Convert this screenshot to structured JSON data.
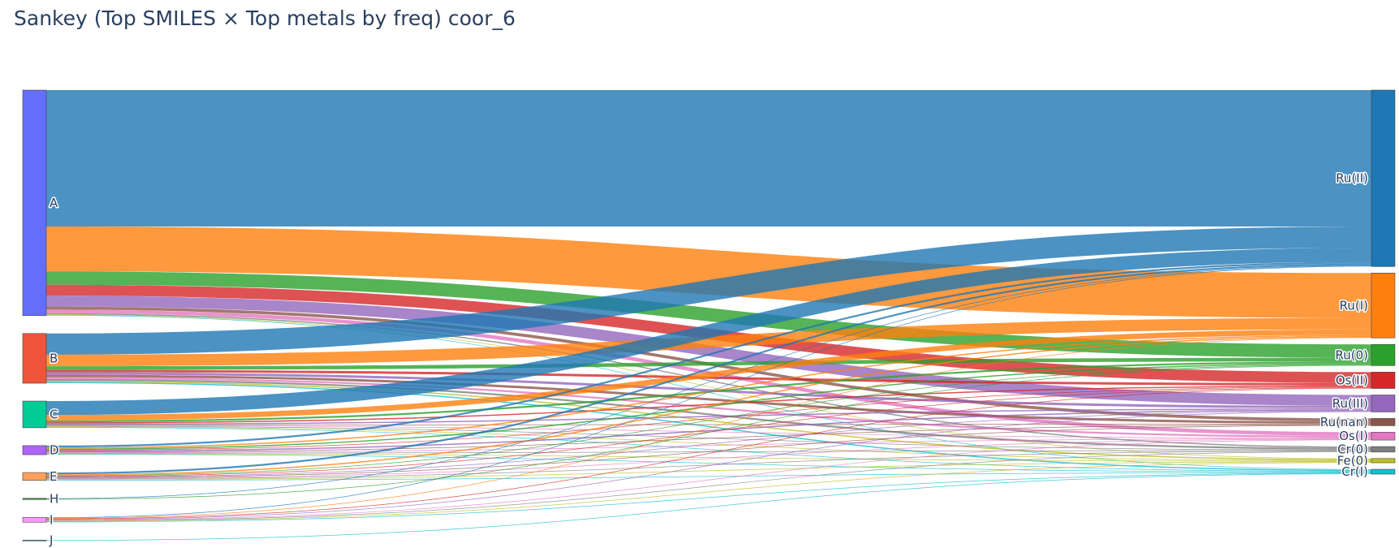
{
  "chart_data": {
    "type": "sankey",
    "title": "Sankey (Top SMILES × Top metals by freq) coor_6",
    "sources": [
      {
        "label": "A",
        "color": "#636efa"
      },
      {
        "label": "B",
        "color": "#EF553B"
      },
      {
        "label": "C",
        "color": "#00cc96"
      },
      {
        "label": "D",
        "color": "#ab63fa"
      },
      {
        "label": "E",
        "color": "#FFA15A"
      },
      {
        "label": "H",
        "color": "#2ca02c"
      },
      {
        "label": "I",
        "color": "#FF97FF"
      },
      {
        "label": "J",
        "color": "#17becf"
      }
    ],
    "targets": [
      {
        "label": "Ru(II)",
        "color": "#1f77b4"
      },
      {
        "label": "Ru(I)",
        "color": "#ff7f0e"
      },
      {
        "label": "Ru(0)",
        "color": "#2ca02c"
      },
      {
        "label": "Os(II)",
        "color": "#d62728"
      },
      {
        "label": "Ru(III)",
        "color": "#9467bd"
      },
      {
        "label": "Ru(nan)",
        "color": "#8c564b"
      },
      {
        "label": "Os(I)",
        "color": "#e377c2"
      },
      {
        "label": "Cr(0)",
        "color": "#7f7f7f"
      },
      {
        "label": "Fe(0)",
        "color": "#bcbd22"
      },
      {
        "label": "Cr(I)",
        "color": "#17becf"
      }
    ],
    "links": [
      {
        "source": "A",
        "target": "Ru(II)",
        "value": 450
      },
      {
        "source": "A",
        "target": "Ru(I)",
        "value": 148
      },
      {
        "source": "A",
        "target": "Ru(0)",
        "value": 44
      },
      {
        "source": "A",
        "target": "Os(II)",
        "value": 36
      },
      {
        "source": "A",
        "target": "Ru(III)",
        "value": 36
      },
      {
        "source": "A",
        "target": "Ru(nan)",
        "value": 10
      },
      {
        "source": "A",
        "target": "Os(I)",
        "value": 12
      },
      {
        "source": "A",
        "target": "Cr(0)",
        "value": 4
      },
      {
        "source": "A",
        "target": "Fe(0)",
        "value": 2
      },
      {
        "source": "A",
        "target": "Cr(I)",
        "value": 2
      },
      {
        "source": "B",
        "target": "Ru(II)",
        "value": 70
      },
      {
        "source": "B",
        "target": "Ru(I)",
        "value": 38
      },
      {
        "source": "B",
        "target": "Ru(0)",
        "value": 12
      },
      {
        "source": "B",
        "target": "Os(II)",
        "value": 8
      },
      {
        "source": "B",
        "target": "Ru(III)",
        "value": 8
      },
      {
        "source": "B",
        "target": "Ru(nan)",
        "value": 8
      },
      {
        "source": "B",
        "target": "Os(I)",
        "value": 6
      },
      {
        "source": "B",
        "target": "Cr(0)",
        "value": 6
      },
      {
        "source": "B",
        "target": "Fe(0)",
        "value": 4
      },
      {
        "source": "B",
        "target": "Cr(I)",
        "value": 4
      },
      {
        "source": "C",
        "target": "Ru(II)",
        "value": 46
      },
      {
        "source": "C",
        "target": "Ru(I)",
        "value": 18
      },
      {
        "source": "C",
        "target": "Ru(0)",
        "value": 6
      },
      {
        "source": "C",
        "target": "Os(II)",
        "value": 4
      },
      {
        "source": "C",
        "target": "Ru(III)",
        "value": 4
      },
      {
        "source": "C",
        "target": "Ru(nan)",
        "value": 2
      },
      {
        "source": "C",
        "target": "Os(I)",
        "value": 2
      },
      {
        "source": "C",
        "target": "Cr(0)",
        "value": 2
      },
      {
        "source": "C",
        "target": "Fe(0)",
        "value": 2
      },
      {
        "source": "C",
        "target": "Cr(I)",
        "value": 2
      },
      {
        "source": "D",
        "target": "Ru(II)",
        "value": 6
      },
      {
        "source": "D",
        "target": "Ru(I)",
        "value": 4
      },
      {
        "source": "D",
        "target": "Ru(0)",
        "value": 4
      },
      {
        "source": "D",
        "target": "Os(II)",
        "value": 2
      },
      {
        "source": "D",
        "target": "Ru(III)",
        "value": 4
      },
      {
        "source": "D",
        "target": "Ru(nan)",
        "value": 2
      },
      {
        "source": "D",
        "target": "Os(I)",
        "value": 2
      },
      {
        "source": "D",
        "target": "Cr(0)",
        "value": 2
      },
      {
        "source": "D",
        "target": "Fe(0)",
        "value": 2
      },
      {
        "source": "D",
        "target": "Cr(I)",
        "value": 2
      },
      {
        "source": "E",
        "target": "Ru(II)",
        "value": 6
      },
      {
        "source": "E",
        "target": "Ru(I)",
        "value": 4
      },
      {
        "source": "E",
        "target": "Ru(0)",
        "value": 2
      },
      {
        "source": "E",
        "target": "Os(II)",
        "value": 2
      },
      {
        "source": "E",
        "target": "Ru(III)",
        "value": 2
      },
      {
        "source": "E",
        "target": "Ru(nan)",
        "value": 2
      },
      {
        "source": "E",
        "target": "Os(I)",
        "value": 2
      },
      {
        "source": "E",
        "target": "Cr(0)",
        "value": 2
      },
      {
        "source": "E",
        "target": "Fe(0)",
        "value": 2
      },
      {
        "source": "E",
        "target": "Cr(I)",
        "value": 2
      },
      {
        "source": "H",
        "target": "Ru(II)",
        "value": 2
      },
      {
        "source": "H",
        "target": "Ru(0)",
        "value": 2
      },
      {
        "source": "I",
        "target": "Ru(II)",
        "value": 2
      },
      {
        "source": "I",
        "target": "Ru(I)",
        "value": 2
      },
      {
        "source": "I",
        "target": "Os(II)",
        "value": 2
      },
      {
        "source": "I",
        "target": "Ru(III)",
        "value": 2
      },
      {
        "source": "I",
        "target": "Os(I)",
        "value": 2
      },
      {
        "source": "I",
        "target": "Cr(0)",
        "value": 2
      },
      {
        "source": "I",
        "target": "Fe(0)",
        "value": 2
      },
      {
        "source": "I",
        "target": "Cr(I)",
        "value": 2
      },
      {
        "source": "J",
        "target": "Cr(I)",
        "value": 2
      }
    ]
  }
}
